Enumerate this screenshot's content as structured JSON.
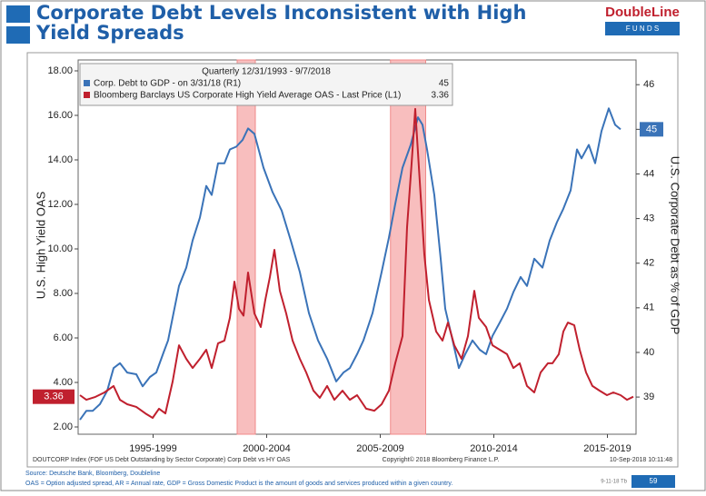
{
  "slide": {
    "title": "Corporate Debt Levels Inconsistent with High Yield Spreads",
    "logo_name": "DoubleLine",
    "logo_sub": "F U N D S",
    "source": "Source: Deutsche Bank, Bloomberg, Doubleline",
    "footnote": "OAS = Option adjusted spread, AR = Annual rate, GDP = Gross Domestic Product is the amount of goods and services produced within a given country.",
    "code": "9-11-18 Tb",
    "page": "59"
  },
  "chart_data": {
    "type": "line",
    "legend_title": "Quarterly 12/31/1993 - 9/7/2018",
    "ylabel": "U.S. High Yield OAS",
    "y2label": "U.S. Corporate Debt as % of GDP",
    "footer_left": "DOUTCORP Index (FOF US Debt Outstanding by Sector Corporate) Corp Debt vs HY OAS",
    "footer_center": "Copyright© 2018 Bloomberg Finance L.P.",
    "footer_right": "10-Sep-2018 10:11:48",
    "xlim": [
      1994.2,
      2018.76
    ],
    "xticks": [
      {
        "value": 1997.5,
        "label": "1995-1999"
      },
      {
        "value": 2002.5,
        "label": "2000-2004"
      },
      {
        "value": 2007.5,
        "label": "2005-2009"
      },
      {
        "value": 2012.5,
        "label": "2010-2014"
      },
      {
        "value": 2017.5,
        "label": "2015-2019"
      }
    ],
    "ylim": [
      2,
      18
    ],
    "yticks": [
      {
        "value": 2,
        "label": "2.00"
      },
      {
        "value": 4,
        "label": "4.00"
      },
      {
        "value": 6,
        "label": "6.00"
      },
      {
        "value": 8,
        "label": "8.00"
      },
      {
        "value": 10,
        "label": "10.00"
      },
      {
        "value": 12,
        "label": "12.00"
      },
      {
        "value": 14,
        "label": "14.00"
      },
      {
        "value": 16,
        "label": "16.00"
      },
      {
        "value": 18,
        "label": "18.00"
      }
    ],
    "y2lim": [
      38.33,
      46.31
    ],
    "y2ticks": [
      39,
      40,
      41,
      42,
      43,
      44,
      45,
      46
    ],
    "shaded_periods": [
      [
        2001.2,
        2002.0
      ],
      [
        2007.95,
        2009.5
      ]
    ],
    "series": [
      {
        "name": "Corp. Debt to GDP - on 3/31/18 (R1)",
        "color": "#3a73b8",
        "axis": "y2",
        "x": [
          1994.28,
          1994.56,
          1994.84,
          1995.16,
          1995.48,
          1995.76,
          1996.04,
          1996.36,
          1996.76,
          1997.04,
          1997.36,
          1997.64,
          1997.96,
          1998.16,
          1998.36,
          1998.64,
          1998.96,
          1999.24,
          1999.56,
          1999.84,
          2000.08,
          2000.36,
          2000.64,
          2000.88,
          2001.16,
          2001.44,
          2001.68,
          2001.96,
          2002.36,
          2002.76,
          2003.16,
          2003.56,
          2003.96,
          2004.36,
          2004.76,
          2005.16,
          2005.56,
          2005.88,
          2006.16,
          2006.48,
          2006.76,
          2007.16,
          2007.56,
          2007.88,
          2008.16,
          2008.48,
          2008.84,
          2009.16,
          2009.36,
          2009.56,
          2009.88,
          2010.16,
          2010.36,
          2010.64,
          2010.96,
          2011.24,
          2011.56,
          2011.88,
          2012.16,
          2012.44,
          2012.76,
          2013.08,
          2013.36,
          2013.68,
          2013.96,
          2014.28,
          2014.64,
          2014.96,
          2015.28,
          2015.56,
          2015.88,
          2016.16,
          2016.36,
          2016.68,
          2016.96,
          2017.24,
          2017.56,
          2017.84,
          2018.08
        ],
        "values": [
          38.49,
          38.69,
          38.69,
          38.84,
          39.14,
          39.65,
          39.76,
          39.55,
          39.51,
          39.24,
          39.45,
          39.55,
          40.0,
          40.27,
          40.78,
          41.49,
          41.9,
          42.51,
          43.02,
          43.73,
          43.53,
          44.24,
          44.24,
          44.55,
          44.61,
          44.76,
          45.02,
          44.9,
          44.14,
          43.59,
          43.18,
          42.51,
          41.8,
          40.88,
          40.27,
          39.86,
          39.35,
          39.55,
          39.65,
          39.96,
          40.27,
          40.88,
          41.8,
          42.57,
          43.33,
          44.14,
          44.65,
          45.27,
          45.1,
          44.55,
          43.53,
          42.1,
          40.98,
          40.37,
          39.65,
          39.96,
          40.27,
          40.06,
          39.96,
          40.37,
          40.67,
          40.98,
          41.35,
          41.69,
          41.49,
          42.1,
          41.9,
          42.51,
          42.92,
          43.22,
          43.63,
          44.55,
          44.35,
          44.65,
          44.24,
          44.96,
          45.47,
          45.1,
          45
        ]
      },
      {
        "name": "Bloomberg Barclays US Corporate High Yield Average OAS - Last Price (L1)",
        "color": "#c0202e",
        "axis": "y",
        "x": [
          1994.28,
          1994.56,
          1994.96,
          1995.36,
          1995.76,
          1996.04,
          1996.36,
          1996.76,
          1997.16,
          1997.48,
          1997.76,
          1998.04,
          1998.36,
          1998.64,
          1998.96,
          1999.24,
          1999.56,
          1999.84,
          2000.08,
          2000.36,
          2000.64,
          2000.88,
          2001.08,
          2001.28,
          2001.48,
          2001.68,
          2001.96,
          2002.24,
          2002.44,
          2002.64,
          2002.84,
          2003.08,
          2003.36,
          2003.64,
          2003.96,
          2004.24,
          2004.56,
          2004.84,
          2005.16,
          2005.48,
          2005.84,
          2006.16,
          2006.48,
          2006.88,
          2007.24,
          2007.56,
          2007.88,
          2008.16,
          2008.48,
          2008.68,
          2008.88,
          2009.04,
          2009.24,
          2009.44,
          2009.64,
          2009.96,
          2010.24,
          2010.48,
          2010.76,
          2011.08,
          2011.36,
          2011.64,
          2011.84,
          2012.16,
          2012.44,
          2012.76,
          2013.08,
          2013.36,
          2013.64,
          2013.96,
          2014.28,
          2014.56,
          2014.88,
          2015.08,
          2015.36,
          2015.56,
          2015.76,
          2016.04,
          2016.28,
          2016.56,
          2016.84,
          2017.16,
          2017.48,
          2017.76,
          2018.08,
          2018.36,
          2018.64
        ],
        "values": [
          3.43,
          3.22,
          3.35,
          3.55,
          3.84,
          3.22,
          3.02,
          2.9,
          2.61,
          2.41,
          2.82,
          2.61,
          4.04,
          5.67,
          5.06,
          4.65,
          5.06,
          5.47,
          4.65,
          5.76,
          5.88,
          6.9,
          8.53,
          7.31,
          7.0,
          8.94,
          7.1,
          6.49,
          7.71,
          8.73,
          9.96,
          8.12,
          7.1,
          5.88,
          5.06,
          4.45,
          3.63,
          3.31,
          3.84,
          3.22,
          3.63,
          3.22,
          3.43,
          2.82,
          2.73,
          3.02,
          3.63,
          4.86,
          6.08,
          10.98,
          13.84,
          16.29,
          13.02,
          9.76,
          7.71,
          6.29,
          5.88,
          6.69,
          5.67,
          5.06,
          6.08,
          8.12,
          6.9,
          6.49,
          5.67,
          5.47,
          5.27,
          4.65,
          4.86,
          3.84,
          3.55,
          4.45,
          4.86,
          4.86,
          5.27,
          6.29,
          6.69,
          6.57,
          5.47,
          4.45,
          3.84,
          3.63,
          3.43,
          3.55,
          3.43,
          3.22,
          3.36
        ]
      }
    ]
  }
}
